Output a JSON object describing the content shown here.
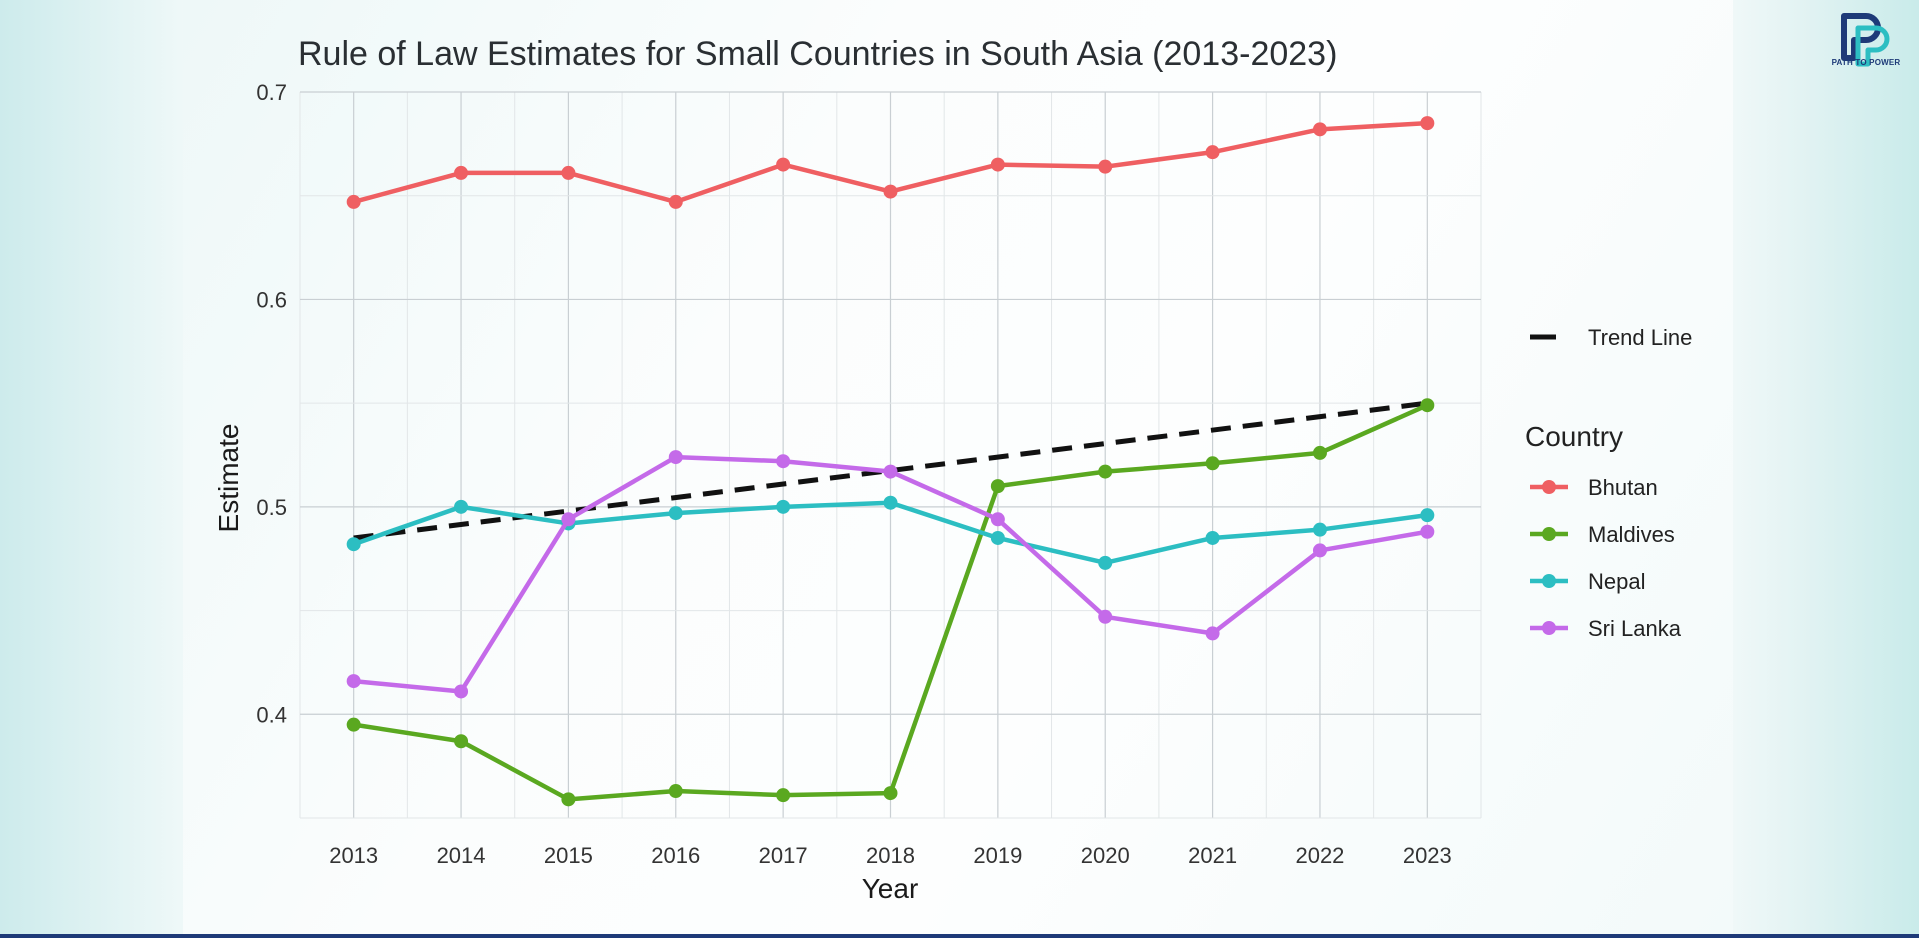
{
  "branding": {
    "logo_text": "PATH TO POWER",
    "logo_icon": "path-to-power-logo-icon"
  },
  "colors": {
    "Bhutan": "#ef5f62",
    "Maldives": "#5aa820",
    "Nepal": "#2cbec2",
    "Sri Lanka": "#c46ae9",
    "trend": "#111111",
    "accent": "#1e3a78"
  },
  "chart_data": {
    "type": "line",
    "title": "Rule of Law Estimates for Small Countries in South Asia (2013-2023)",
    "xlabel": "Year",
    "ylabel": "Estimate",
    "x": [
      2013,
      2014,
      2015,
      2016,
      2017,
      2018,
      2019,
      2020,
      2021,
      2022,
      2023
    ],
    "x_tick_labels": [
      "2013",
      "2014",
      "2015",
      "2016",
      "2017",
      "2018",
      "2019",
      "2020",
      "2021",
      "2022",
      "2023"
    ],
    "y_ticks": [
      0.4,
      0.5,
      0.6,
      0.7
    ],
    "y_tick_labels": [
      "0.4",
      "0.5",
      "0.6",
      "0.7"
    ],
    "ylim": [
      0.35,
      0.7
    ],
    "grid": true,
    "legend_title": "Country",
    "legend_position": "right",
    "series": [
      {
        "name": "Bhutan",
        "values": [
          0.647,
          0.661,
          0.661,
          0.647,
          0.665,
          0.652,
          0.665,
          0.664,
          0.671,
          0.682,
          0.685
        ]
      },
      {
        "name": "Maldives",
        "values": [
          0.395,
          0.387,
          0.359,
          0.363,
          0.361,
          0.362,
          0.51,
          0.517,
          0.521,
          0.526,
          0.549
        ]
      },
      {
        "name": "Nepal",
        "values": [
          0.482,
          0.5,
          0.492,
          0.497,
          0.5,
          0.502,
          0.485,
          0.473,
          0.485,
          0.489,
          0.496
        ]
      },
      {
        "name": "Sri Lanka",
        "values": [
          0.416,
          0.411,
          0.494,
          0.524,
          0.522,
          0.517,
          0.494,
          0.447,
          0.439,
          0.479,
          0.488
        ]
      }
    ],
    "trend": {
      "name": "Trend Line",
      "start": [
        2013,
        0.485
      ],
      "end": [
        2023,
        0.55
      ]
    }
  }
}
